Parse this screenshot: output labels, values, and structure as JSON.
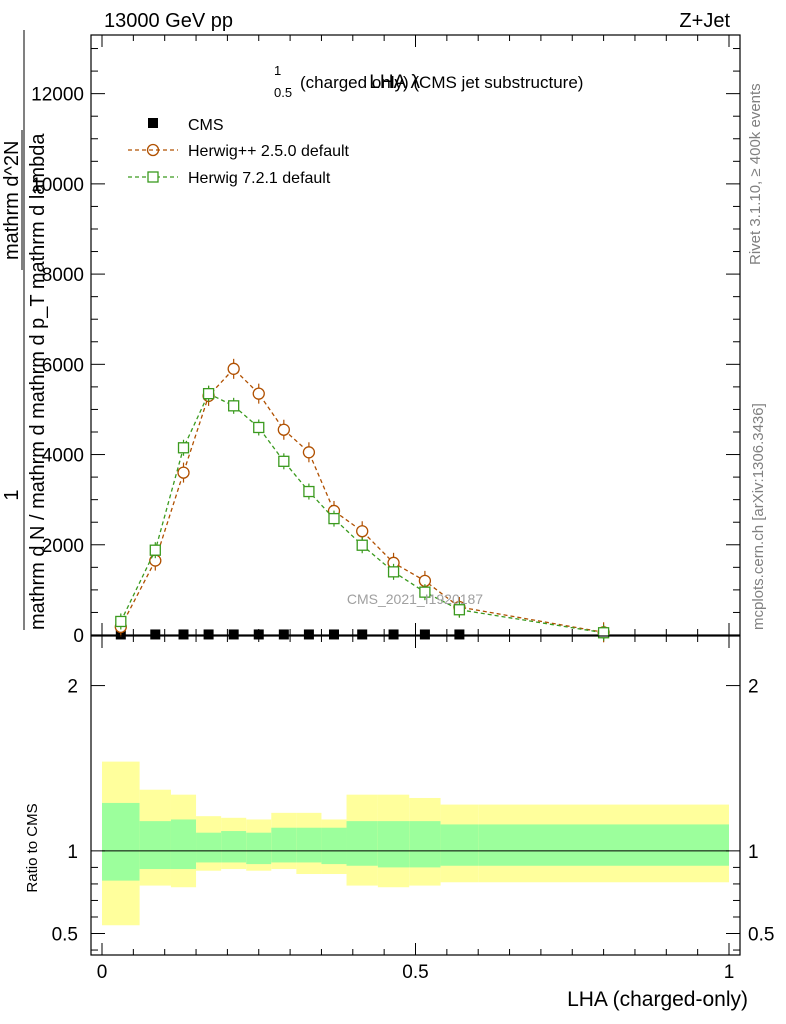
{
  "header": {
    "left": "13000 GeV pp",
    "right": "Z+Jet"
  },
  "side_labels": {
    "top": "Rivet 3.1.10, ≥ 400k events",
    "bottom": "mcplots.cern.ch [arXiv:1306.3436]"
  },
  "watermark": "CMS_2021_I1920187",
  "chart_data": [
    {
      "type": "line",
      "title_prefix": "LHA λ",
      "title_sup": "1",
      "title_sub": "0.5",
      "title_suffix": "(charged only) (CMS jet substructure)",
      "ylabel_top": "1",
      "ylabel_parts": [
        "mathrm d N / mathrm d p",
        "mathrm d N / mathrm d lambda",
        "mathrm d N / mathrm d",
        "mathrm d",
        "mathrm d p"
      ],
      "ylabel_visible": [
        "mathrm d N / mathrm d",
        "mathrm d N / mathrm d",
        "mathrm d lambda",
        "1"
      ],
      "ylabel_line1": "1",
      "ylabel_line2": "mathrm d N / mathrm d mathrm d p_T mathrm d lambda",
      "ylabel_line3": "mathrm d^2N",
      "xlim": [
        0,
        1
      ],
      "ylim": [
        0,
        13300
      ],
      "yticks": [
        0,
        2000,
        4000,
        6000,
        8000,
        10000,
        12000
      ],
      "ytick_labels": [
        "0",
        "2000",
        "4000",
        "6000",
        "8000",
        "10000",
        "12000"
      ],
      "legend_placement": "top-left",
      "series": [
        {
          "name": "CMS",
          "color": "#000000",
          "marker": "filled-square",
          "x": [
            0.03,
            0.085,
            0.13,
            0.17,
            0.21,
            0.25,
            0.29,
            0.33,
            0.37,
            0.415,
            0.465,
            0.515,
            0.57
          ],
          "y": [
            12,
            12,
            12,
            12,
            12,
            12,
            12,
            12,
            12,
            12,
            12,
            12,
            12
          ]
        },
        {
          "name": "Herwig++ 2.5.0 default",
          "color": "#b05000",
          "marker": "open-circle",
          "x": [
            0.03,
            0.085,
            0.13,
            0.17,
            0.21,
            0.25,
            0.29,
            0.33,
            0.37,
            0.415,
            0.465,
            0.515,
            0.57,
            0.8
          ],
          "y": [
            180,
            1650,
            3600,
            5300,
            5900,
            5350,
            4550,
            4050,
            2750,
            2300,
            1600,
            1200,
            620,
            60
          ]
        },
        {
          "name": "Herwig 7.2.1 default",
          "color": "#3a9a1e",
          "marker": "open-square",
          "x": [
            0.03,
            0.085,
            0.13,
            0.17,
            0.21,
            0.25,
            0.29,
            0.33,
            0.37,
            0.415,
            0.465,
            0.515,
            0.57,
            0.8
          ],
          "y": [
            300,
            1880,
            4150,
            5350,
            5080,
            4600,
            3850,
            3180,
            2580,
            1990,
            1400,
            950,
            560,
            50
          ]
        }
      ]
    },
    {
      "type": "area",
      "ylabel": "Ratio to CMS",
      "xlabel": "LHA (charged-only)",
      "xlim": [
        0,
        1
      ],
      "ylim": [
        0.37,
        2.3
      ],
      "yticks": [
        0.5,
        1,
        2
      ],
      "ytick_labels": [
        "0.5",
        "1",
        "2"
      ],
      "xticks": [
        0,
        0.5,
        1
      ],
      "xtick_labels": [
        "0",
        "0.5",
        "1"
      ],
      "reference_line": 1,
      "bands": {
        "bin_edges": [
          0,
          0.06,
          0.11,
          0.15,
          0.19,
          0.23,
          0.27,
          0.31,
          0.35,
          0.39,
          0.44,
          0.49,
          0.54,
          0.6,
          1.0
        ],
        "inner_color": "#9cff9c",
        "outer_color": "#ffff9c",
        "inner_low": [
          0.82,
          0.89,
          0.89,
          0.93,
          0.93,
          0.92,
          0.93,
          0.93,
          0.92,
          0.91,
          0.9,
          0.9,
          0.91,
          0.91
        ],
        "inner_high": [
          1.29,
          1.18,
          1.19,
          1.11,
          1.12,
          1.11,
          1.14,
          1.14,
          1.14,
          1.18,
          1.18,
          1.18,
          1.16,
          1.16
        ],
        "outer_low": [
          0.55,
          0.79,
          0.78,
          0.88,
          0.89,
          0.88,
          0.89,
          0.86,
          0.86,
          0.79,
          0.78,
          0.79,
          0.81,
          0.81
        ],
        "outer_high": [
          1.54,
          1.37,
          1.34,
          1.21,
          1.2,
          1.19,
          1.23,
          1.23,
          1.19,
          1.34,
          1.34,
          1.32,
          1.28,
          1.28
        ]
      }
    }
  ]
}
